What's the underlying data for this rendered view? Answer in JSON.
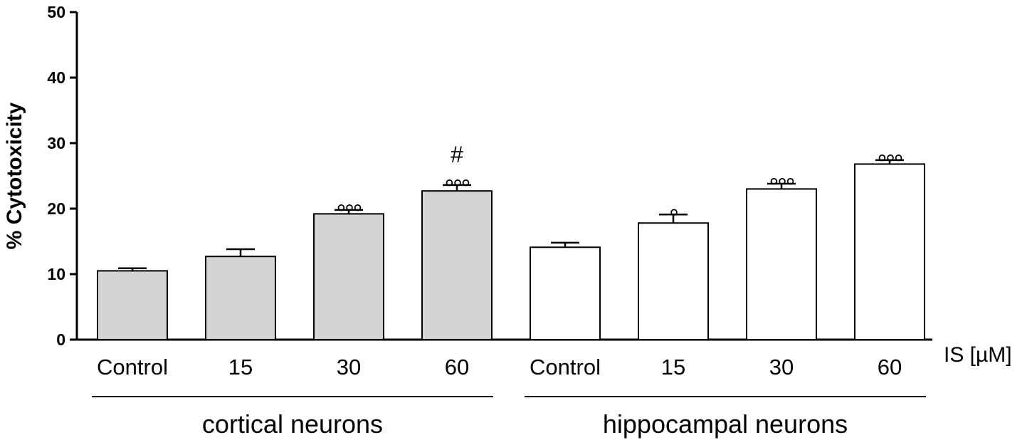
{
  "chart_data": {
    "type": "bar",
    "y_label": "% Cytotoxicity",
    "x_label": "IS [µM]",
    "ylim": [
      0,
      50
    ],
    "yticks": [
      0,
      10,
      20,
      30,
      40,
      50
    ],
    "groups": [
      {
        "label": "cortical neurons",
        "color": "#d3d3d3",
        "categories": [
          "Control",
          "15",
          "30",
          "60"
        ],
        "values": [
          10.5,
          12.7,
          19.2,
          22.7
        ],
        "errors": [
          0.4,
          1.1,
          0.6,
          0.9
        ],
        "annotations": [
          null,
          null,
          "°°°",
          "°°°"
        ],
        "top_annotations": [
          null,
          null,
          null,
          "#"
        ]
      },
      {
        "label": "hippocampal neurons",
        "color": "#ffffff",
        "categories": [
          "Control",
          "15",
          "30",
          "60"
        ],
        "values": [
          14.1,
          17.8,
          23.0,
          26.8
        ],
        "errors": [
          0.7,
          1.3,
          0.8,
          0.6
        ],
        "annotations": [
          null,
          "°",
          "°°°",
          "°°°"
        ],
        "top_annotations": [
          null,
          null,
          null,
          null
        ]
      }
    ]
  }
}
